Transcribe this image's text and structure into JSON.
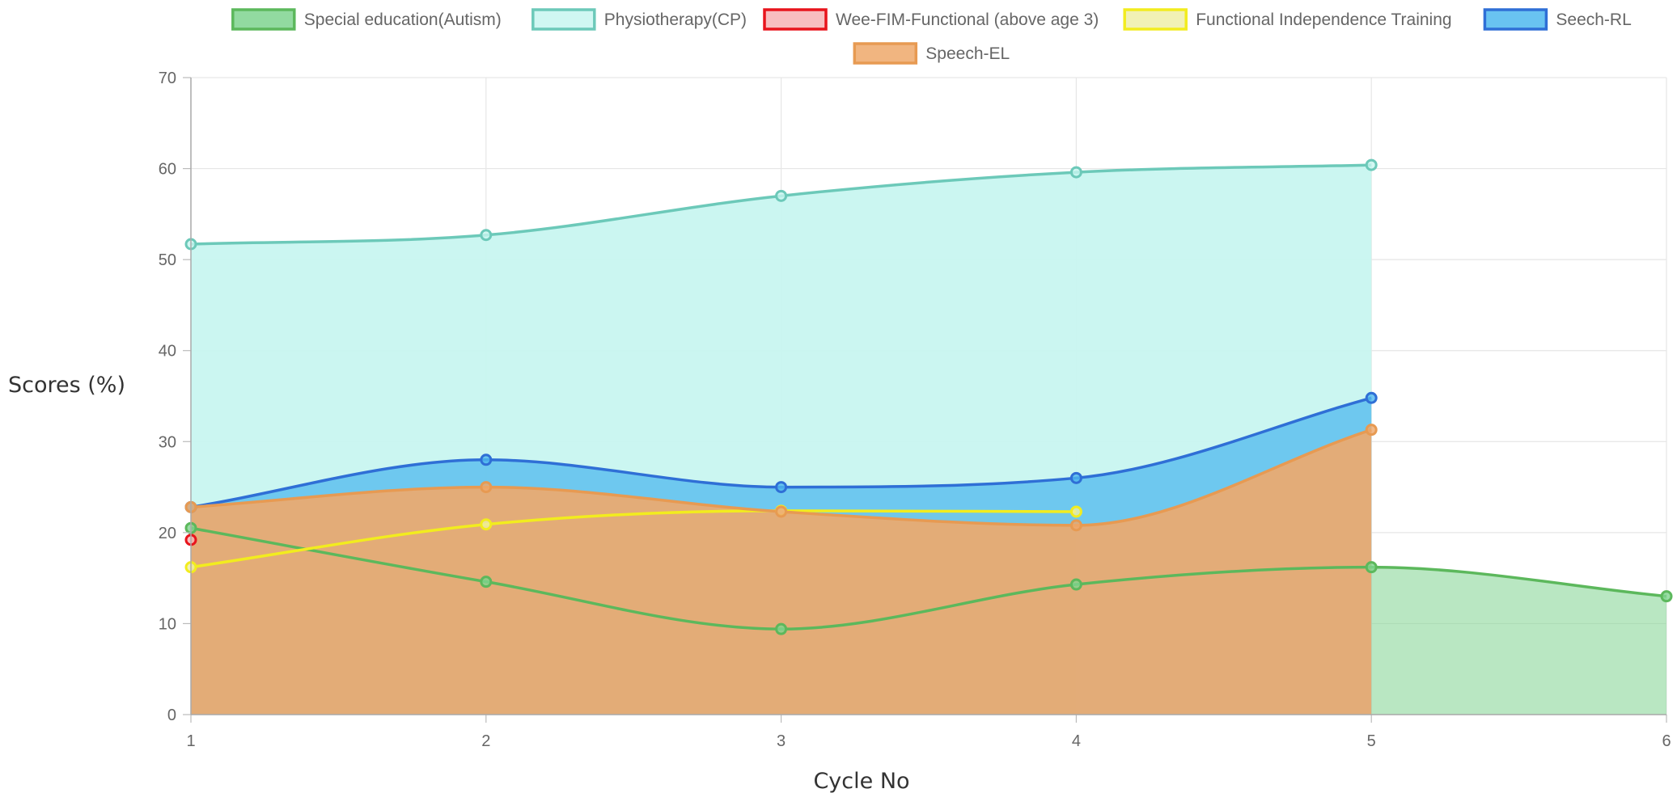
{
  "chart_data": {
    "type": "area",
    "xlabel": "Cycle No",
    "ylabel": "Scores (%)",
    "x": [
      1,
      2,
      3,
      4,
      5,
      6
    ],
    "x_tick_labels": [
      "1",
      "2",
      "3",
      "4",
      "5",
      "6"
    ],
    "ylim": [
      0,
      70
    ],
    "y_ticks": [
      0,
      10,
      20,
      30,
      40,
      50,
      60,
      70
    ],
    "grid": true,
    "legend_position": "top",
    "series": [
      {
        "name": "Special education(Autism)",
        "x": [
          1,
          2,
          3,
          4,
          5,
          6
        ],
        "values": [
          20.5,
          14.6,
          9.4,
          14.3,
          16.2,
          13.0
        ],
        "border": "#5cb85c",
        "fill": "#7fd48f",
        "fill_alpha": 0.55
      },
      {
        "name": "Physiotherapy(CP)",
        "x": [
          1,
          2,
          3,
          4,
          5
        ],
        "values": [
          51.7,
          52.7,
          57.0,
          59.6,
          60.4
        ],
        "border": "#6cc9b9",
        "fill": "#c8f6f0",
        "fill_alpha": 0.95
      },
      {
        "name": "Wee-FIM-Functional (above age 3)",
        "x": [
          1
        ],
        "values": [
          19.2
        ],
        "border": "#e8141c",
        "fill": "#f7b3b5",
        "fill_alpha": 0.8
      },
      {
        "name": "Functional Independence Training",
        "x": [
          1,
          2,
          3,
          4
        ],
        "values": [
          16.2,
          20.9,
          22.4,
          22.3
        ],
        "border": "#f2ec1e",
        "fill": "#eeeea8",
        "fill_alpha": 0.35
      },
      {
        "name": "Seech-RL",
        "x": [
          1,
          2,
          3,
          4,
          5
        ],
        "values": [
          22.8,
          28.0,
          25.0,
          26.0,
          34.8
        ],
        "border": "#2f6fd6",
        "fill": "#4fb8ee",
        "fill_alpha": 0.75
      },
      {
        "name": "Speech-EL",
        "x": [
          1,
          2,
          3,
          4,
          5
        ],
        "values": [
          22.8,
          25.0,
          22.3,
          20.8,
          31.3
        ],
        "border": "#e79a52",
        "fill": "#efa86a",
        "fill_alpha": 0.9
      }
    ]
  }
}
